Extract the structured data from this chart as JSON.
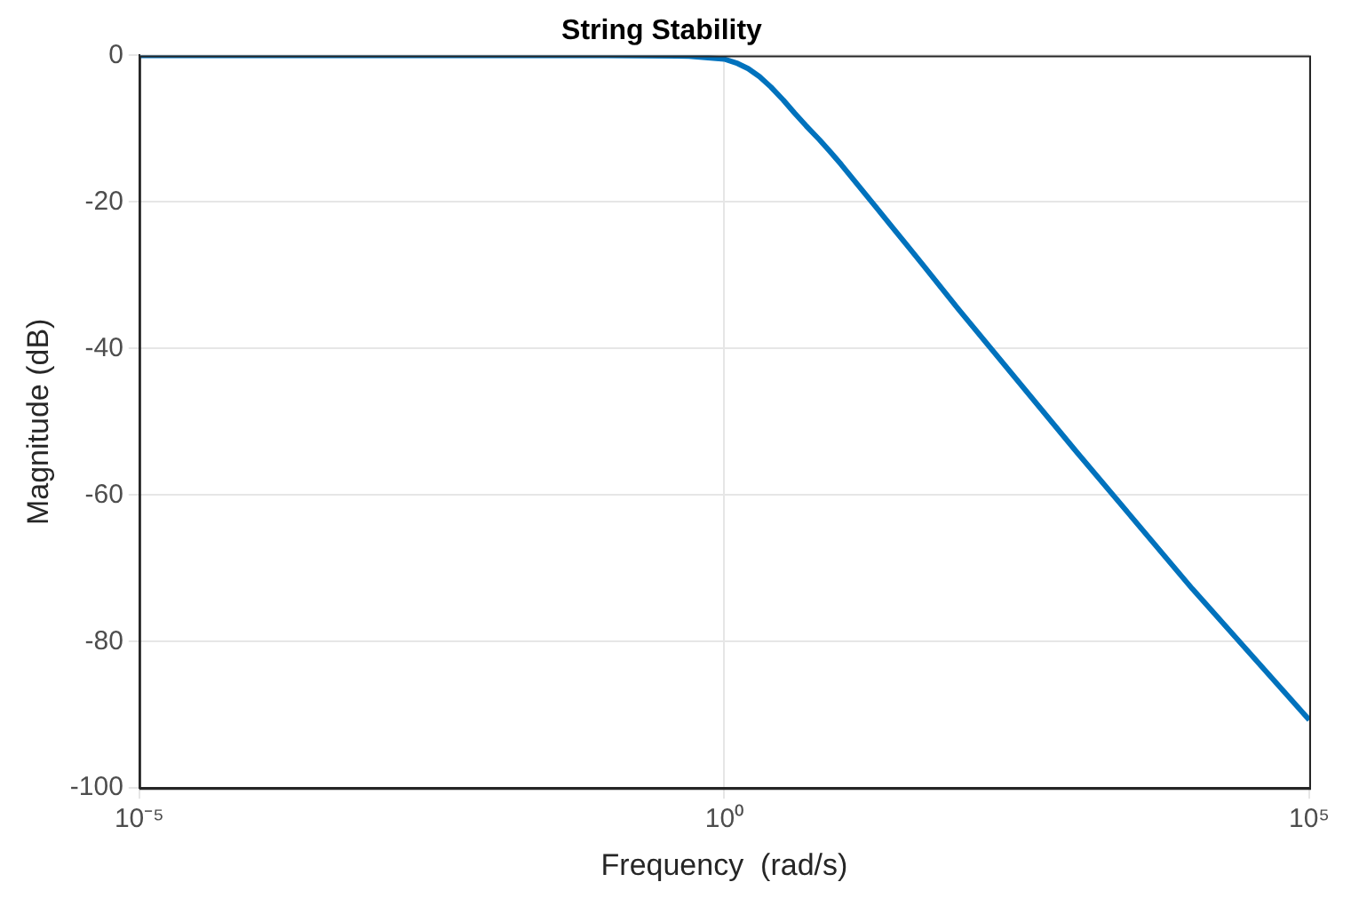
{
  "chart_data": {
    "type": "line",
    "title": "String Stability",
    "xlabel": "Frequency  (rad/s)",
    "ylabel": "Magnitude (dB)",
    "x": [
      1e-05,
      0.001,
      0.1,
      0.5,
      1,
      1.3,
      1.6,
      2,
      2.5,
      3.2,
      4,
      5,
      6.5,
      8,
      10,
      20,
      50,
      100,
      1000,
      10000,
      100000
    ],
    "series": [
      {
        "color": "#0072bd",
        "values": [
          0,
          0,
          0,
          -0.1,
          -0.5,
          -1.1,
          -1.8,
          -2.9,
          -4.3,
          -6.1,
          -7.9,
          -9.6,
          -11.5,
          -13.1,
          -14.9,
          -20.8,
          -28.6,
          -34.6,
          -53.9,
          -72.8,
          -90.7
        ]
      }
    ],
    "xlim": [
      1e-05,
      100000
    ],
    "xticks": [
      {
        "value": 1e-05,
        "label": "10⁻⁵"
      },
      {
        "value": 1,
        "label": "10⁰"
      },
      {
        "value": 100000,
        "label": "10⁵"
      }
    ],
    "ylim": [
      -100,
      0
    ],
    "yticks": [
      -100,
      -80,
      -60,
      -40,
      -20,
      0
    ],
    "log": "x",
    "grid": true,
    "marker": "none",
    "line_style": "solid",
    "legend": false
  }
}
